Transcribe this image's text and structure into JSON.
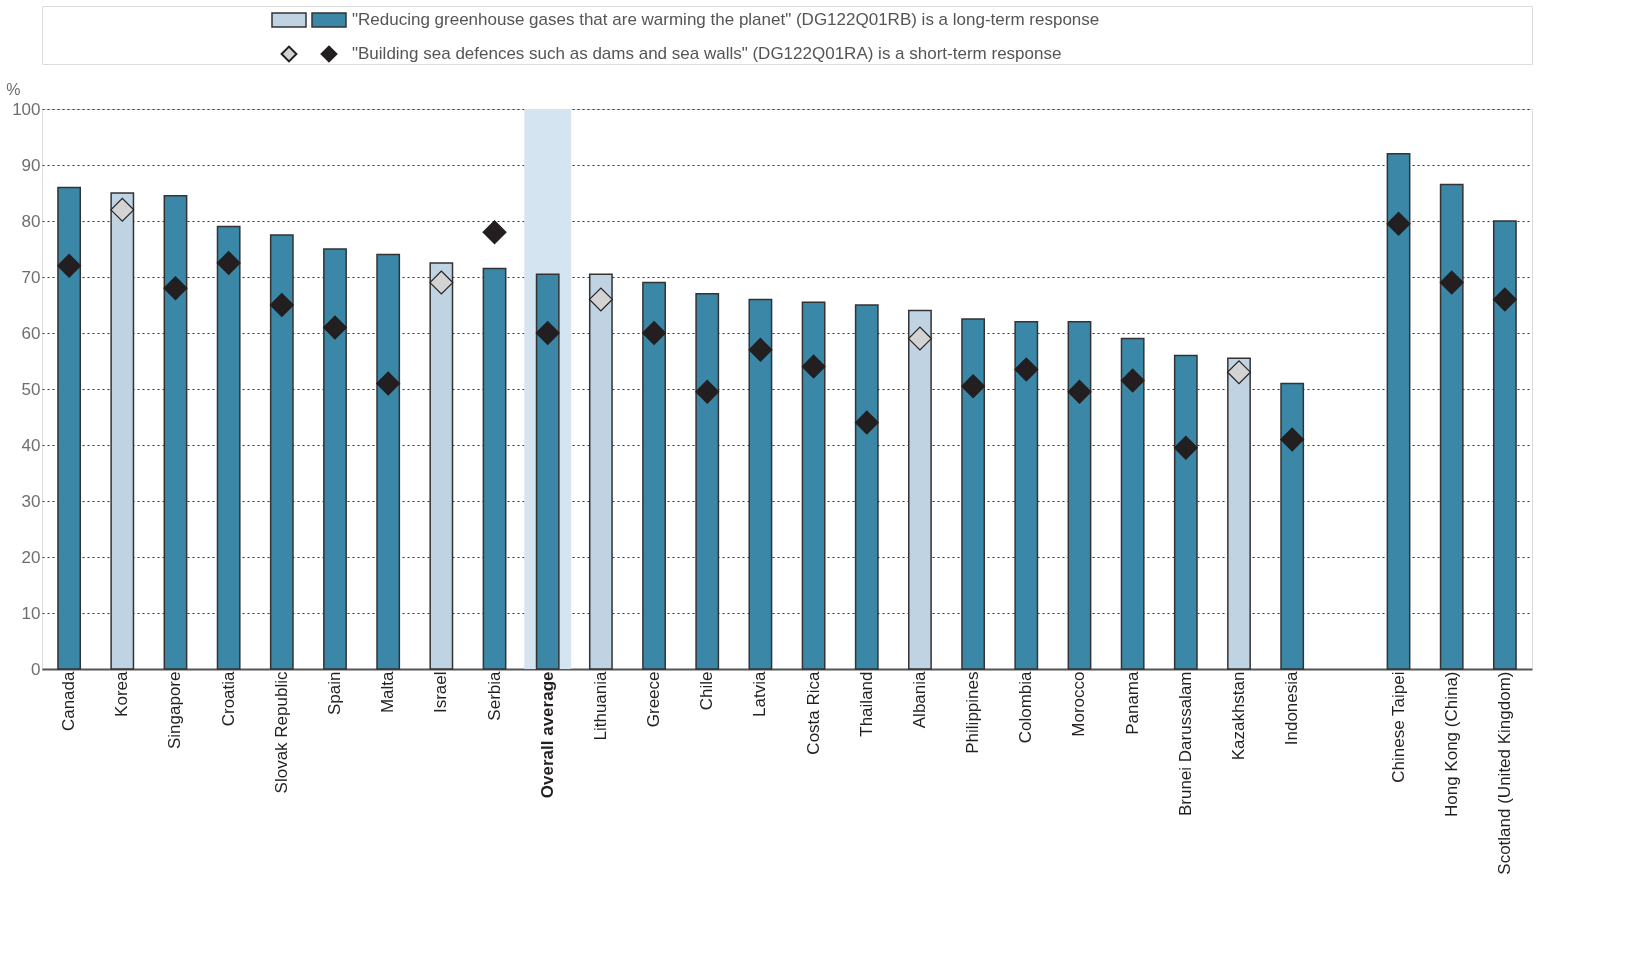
{
  "chart_data": {
    "type": "bar",
    "ylabel": "%",
    "ylim": [
      0,
      100
    ],
    "yticks": [
      0,
      10,
      20,
      30,
      40,
      50,
      60,
      70,
      80,
      90,
      100
    ],
    "grid": "y",
    "legend": "top",
    "categories": [
      "Canada",
      "Korea",
      "Singapore",
      "Croatia",
      "Slovak Republic",
      "Spain",
      "Malta",
      "Israel",
      "Serbia",
      "Overall average",
      "Lithuania",
      "Greece",
      "Chile",
      "Latvia",
      "Costa Rica",
      "Thailand",
      "Albania",
      "Philippines",
      "Colombia",
      "Morocco",
      "Panama",
      "Brunei Darussalam",
      "Kazakhstan",
      "Indonesia",
      null,
      "Chinese Taipei",
      "Hong Kong (China)",
      "Scotland (United Kingdom)"
    ],
    "series": [
      {
        "name": "\"Reducing greenhouse gases that are warming the planet\" (DG122Q01RB) is a long-term response",
        "values": [
          86,
          85,
          84.5,
          79,
          77.5,
          75,
          74,
          72.5,
          71.5,
          70.5,
          70.5,
          69,
          67,
          66,
          65.5,
          65,
          64,
          62.5,
          62,
          62,
          59,
          56,
          55.5,
          51,
          null,
          92,
          86.5,
          80
        ],
        "colors": [
          "#3a87a8",
          "#bfd3e3",
          "#3a87a8",
          "#3a87a8",
          "#3a87a8",
          "#3a87a8",
          "#3a87a8",
          "#bfd3e3",
          "#3a87a8",
          "#3a87a8",
          "#bfd3e3",
          "#3a87a8",
          "#3a87a8",
          "#3a87a8",
          "#3a87a8",
          "#3a87a8",
          "#bfd3e3",
          "#3a87a8",
          "#3a87a8",
          "#3a87a8",
          "#3a87a8",
          "#3a87a8",
          "#bfd3e3",
          "#3a87a8",
          null,
          "#3a87a8",
          "#3a87a8",
          "#3a87a8"
        ]
      },
      {
        "type": "scatter",
        "marker": "diamond",
        "name": "\"Building sea defences such as dams and sea walls\" (DG122Q01RA) is a short-term response",
        "values": [
          72,
          82,
          68,
          72.5,
          65,
          61,
          51,
          69,
          78,
          60,
          66,
          60,
          49.5,
          57,
          54,
          44,
          59,
          50.5,
          53.5,
          49.5,
          51.5,
          39.5,
          53,
          41,
          null,
          79.5,
          69,
          66
        ],
        "colors": [
          "#231f20",
          "#d3d3d3",
          "#231f20",
          "#231f20",
          "#231f20",
          "#231f20",
          "#231f20",
          "#d3d3d3",
          "#231f20",
          "#231f20",
          "#d3d3d3",
          "#231f20",
          "#231f20",
          "#231f20",
          "#231f20",
          "#231f20",
          "#d3d3d3",
          "#231f20",
          "#231f20",
          "#231f20",
          "#231f20",
          "#231f20",
          "#d3d3d3",
          "#231f20",
          null,
          "#231f20",
          "#231f20",
          "#231f20"
        ]
      }
    ],
    "bands": [
      {
        "axis": "x",
        "from": "Overall average",
        "to": "Overall average",
        "color": "#d4e4f0"
      }
    ]
  }
}
